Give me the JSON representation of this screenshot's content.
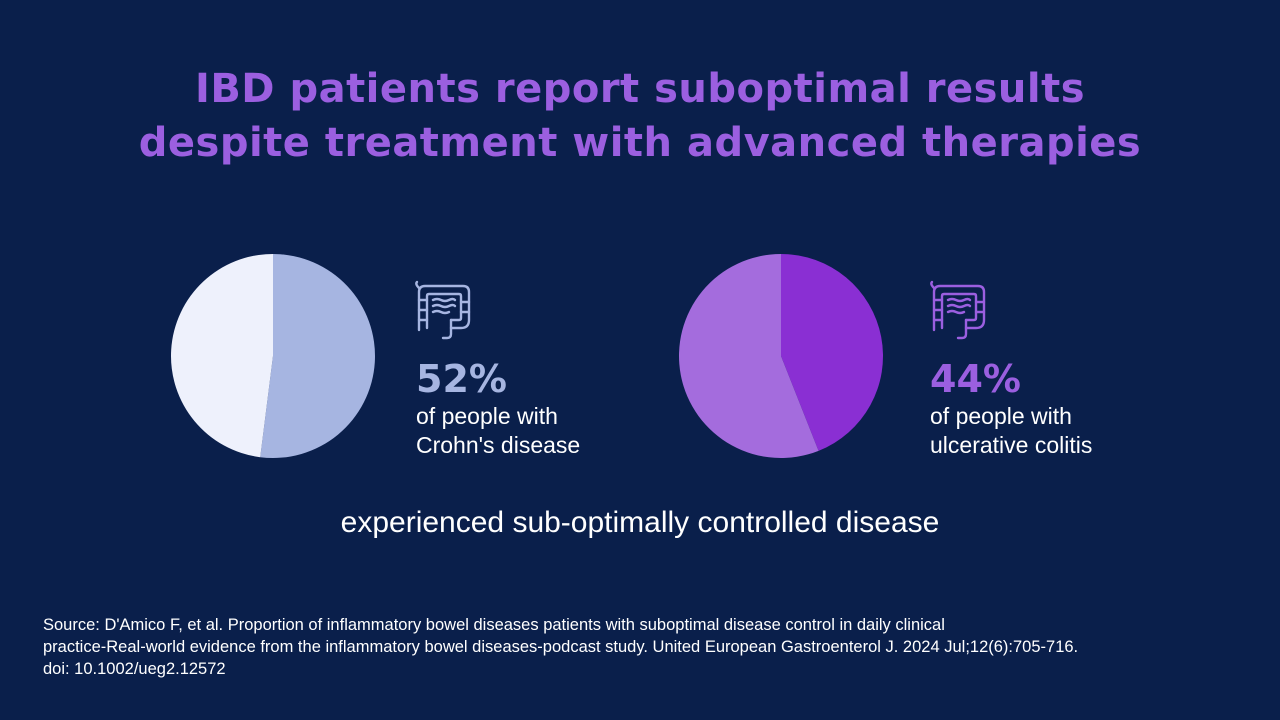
{
  "title": {
    "line1": "IBD patients report suboptimal results",
    "line2": "despite treatment with advanced therapies"
  },
  "colors": {
    "background": "#0a1f4b",
    "title": "#9b5fe0",
    "crohns_highlight": "#a6b5e1",
    "crohns_rest": "#eef1fc",
    "uc_highlight": "#8a2fd3",
    "uc_rest": "#a46cdd"
  },
  "chart_data": [
    {
      "type": "pie",
      "slices": [
        {
          "value": 52,
          "color": "#a6b5e1"
        },
        {
          "value": 48,
          "color": "#eef1fc"
        }
      ],
      "percent_label": "52%",
      "description_line1": "of people with",
      "description_line2": "Crohn's disease",
      "icon": "intestine-icon"
    },
    {
      "type": "pie",
      "slices": [
        {
          "value": 44,
          "color": "#8a2fd3"
        },
        {
          "value": 56,
          "color": "#a46cdd"
        }
      ],
      "percent_label": "44%",
      "description_line1": "of people with",
      "description_line2": "ulcerative colitis",
      "icon": "intestine-icon"
    }
  ],
  "caption": "experienced sub-optimally controlled disease",
  "source": {
    "line1": "Source: D'Amico F, et al. Proportion of inflammatory bowel diseases patients with suboptimal disease control in daily clinical",
    "line2": "practice-Real-world evidence from the inflammatory bowel diseases-podcast study. United European Gastroenterol J. 2024 Jul;12(6):705-716.",
    "line3": "doi: 10.1002/ueg2.12572"
  }
}
